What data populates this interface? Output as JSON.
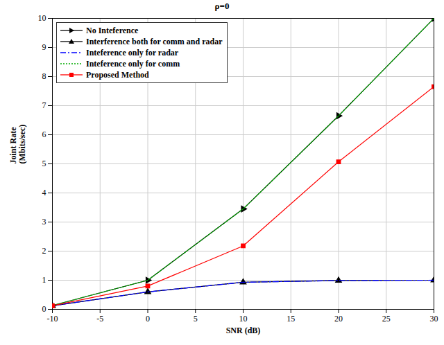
{
  "chart_data": {
    "type": "line",
    "title": "ρ=0",
    "x_label": "SNR (dB)",
    "y_label": "Joint Rate\n(Mbits/sec)",
    "x": [
      -10,
      0,
      10,
      20,
      30
    ],
    "xlim": [
      -10,
      30
    ],
    "xticks": [
      -10,
      -5,
      0,
      5,
      10,
      15,
      20,
      25,
      30
    ],
    "ylim": [
      0,
      10
    ],
    "yticks": [
      0,
      1,
      2,
      3,
      4,
      5,
      6,
      7,
      8,
      9,
      10
    ],
    "grid": true,
    "legend": "top-left",
    "series": [
      {
        "name": "No Inteference",
        "color": "#000000",
        "marker": "triangle-right",
        "line_style": "solid",
        "values": [
          0.13,
          1.0,
          3.45,
          6.65,
          10.0
        ]
      },
      {
        "name": "Interference both for comm and radar",
        "color": "#000000",
        "marker": "triangle-up",
        "line_style": "solid",
        "values": [
          0.12,
          0.6,
          0.93,
          0.99,
          1.0
        ]
      },
      {
        "name": "Inteference only for radar",
        "color": "#0000ff",
        "marker": "none",
        "line_style": "dashdot",
        "values": [
          0.12,
          0.6,
          0.93,
          0.99,
          1.0
        ]
      },
      {
        "name": "Inteference only for comm",
        "color": "#00aa00",
        "marker": "none",
        "line_style": "dotted",
        "values": [
          0.13,
          1.0,
          3.45,
          6.65,
          10.0
        ]
      },
      {
        "name": "Proposed Method",
        "color": "#ff0000",
        "marker": "square",
        "line_style": "solid",
        "values": [
          0.12,
          0.8,
          2.18,
          5.07,
          7.65
        ]
      }
    ]
  }
}
